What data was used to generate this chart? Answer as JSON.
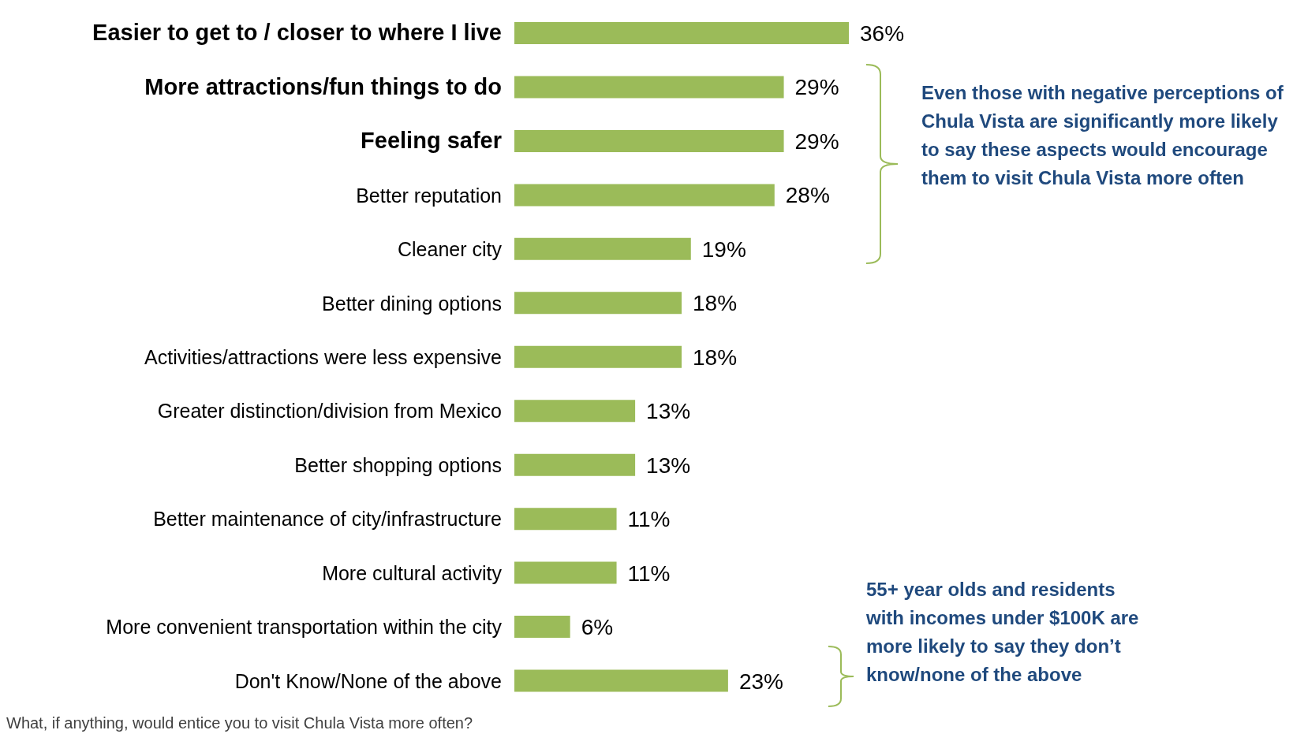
{
  "chart_data": {
    "type": "bar",
    "orientation": "horizontal",
    "categories": [
      "Easier to get to / closer to where I live",
      "More attractions/fun things to do",
      "Feeling safer",
      "Better reputation",
      "Cleaner city",
      "Better dining options",
      "Activities/attractions were less expensive",
      "Greater distinction/division from Mexico",
      "Better shopping options",
      "Better maintenance of city/infrastructure",
      "More cultural activity",
      "More convenient transportation within the city",
      "Don't Know/None of the above"
    ],
    "values": [
      36,
      29,
      29,
      28,
      19,
      18,
      18,
      13,
      13,
      11,
      11,
      6,
      23
    ],
    "value_labels": [
      "36%",
      "29%",
      "29%",
      "28%",
      "19%",
      "18%",
      "18%",
      "13%",
      "13%",
      "11%",
      "11%",
      "6%",
      "23%"
    ],
    "color": "#9bbb59",
    "grid": false,
    "legend": false,
    "annotations": [
      "Even those with negative perceptions of Chula Vista are significantly more likely to say these aspects would encourage them to visit Chula Vista more often",
      "55+ year olds and residents with incomes under $100K are more likely to say they don’t know/none of the above",
      "What, if anything, would entice you to visit Chula Vista more often?"
    ]
  }
}
